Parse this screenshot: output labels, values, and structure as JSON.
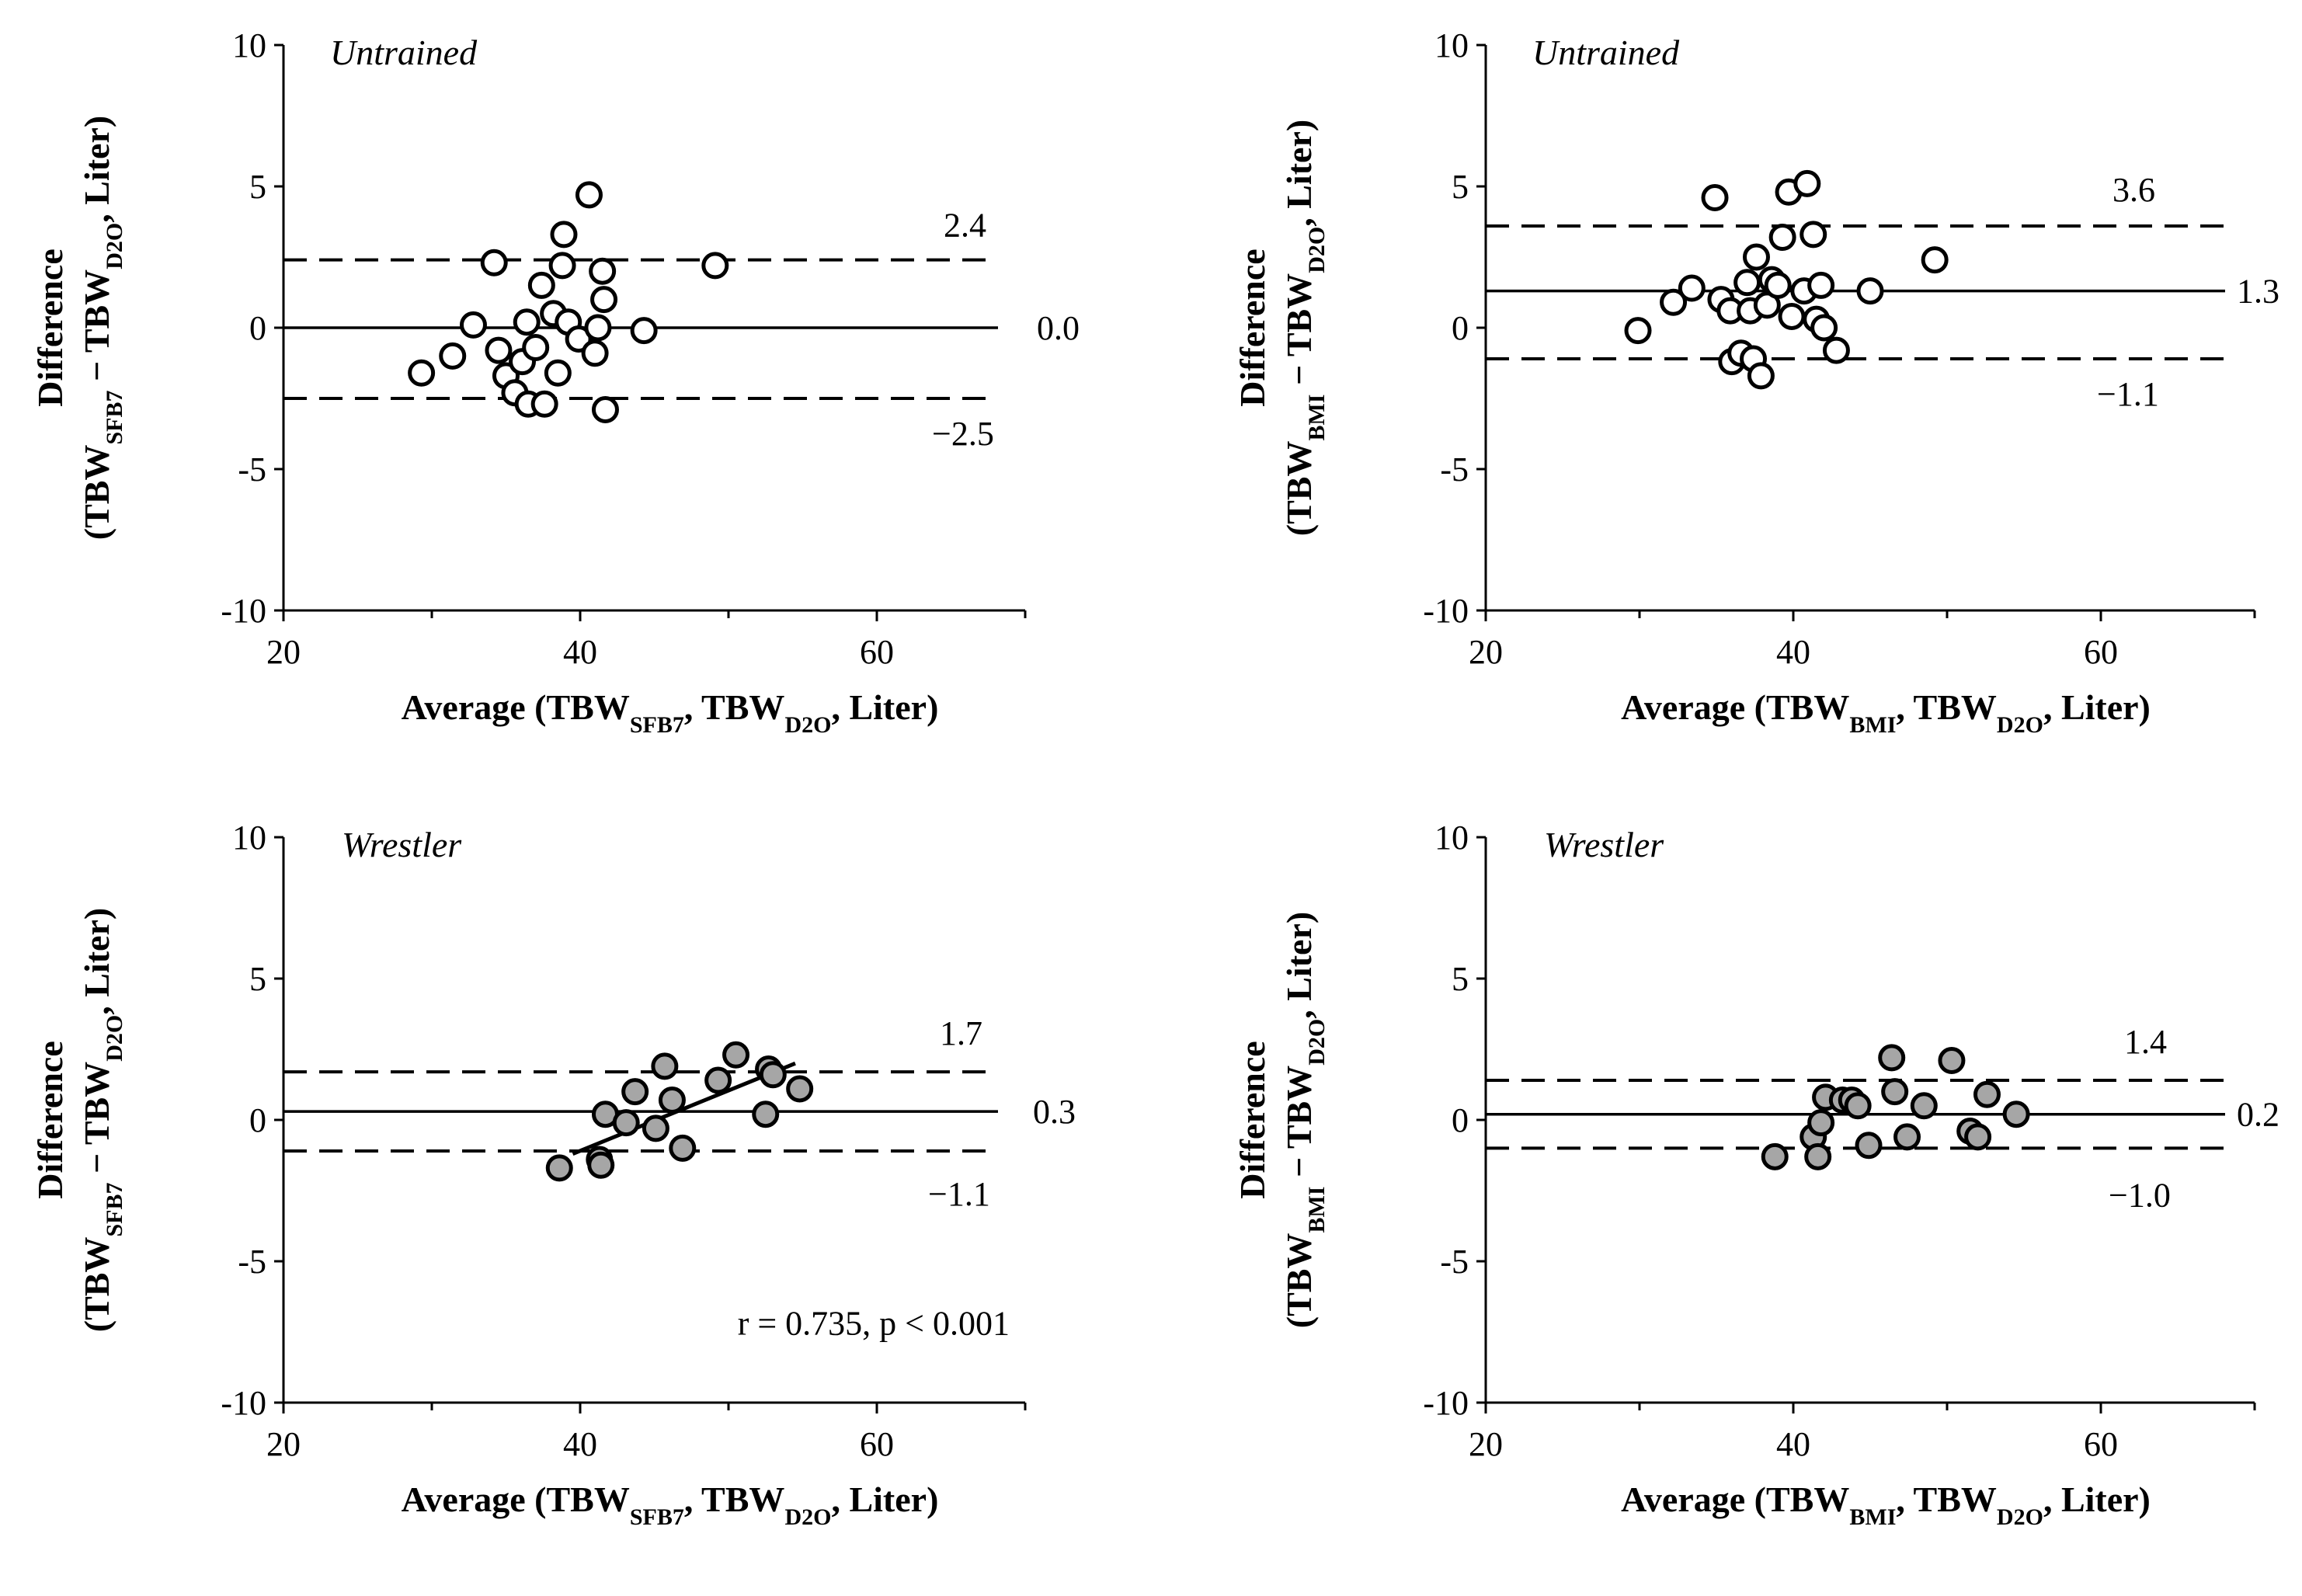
{
  "chart_data": [
    {
      "type": "scatter",
      "panel_label": "Untrained",
      "marker_fill": "#ffffff",
      "xlim": [
        20,
        70
      ],
      "ylim": [
        -10,
        10
      ],
      "xticks": [
        "20",
        "40",
        "60"
      ],
      "yticks": [
        "10",
        "5",
        "0",
        "-5",
        "-10"
      ],
      "xlabel": {
        "prefix": "Average (TBW",
        "sub1": "SFB7",
        "mid": ", TBW",
        "sub2": "D",
        "mid2": "2",
        "sub3": "O",
        "suffix": ", Liter)"
      },
      "ylabel": {
        "line1": "Difference",
        "line2": {
          "prefix": "(TBW",
          "sub1": "SFB7",
          "mid": " − TBW",
          "sub2": "D",
          "mid2": "2",
          "sub3": "O",
          "suffix": ", Liter)"
        }
      },
      "mean": {
        "value": 0.0,
        "label": "0.0"
      },
      "upper": {
        "value": 2.4,
        "label": "2.4"
      },
      "lower": {
        "value": -2.5,
        "label": "−2.5"
      },
      "points": [
        [
          29.3,
          -1.6
        ],
        [
          31.4,
          -1.0
        ],
        [
          32.8,
          0.1
        ],
        [
          34.2,
          2.3
        ],
        [
          34.5,
          -0.8
        ],
        [
          35.0,
          -1.7
        ],
        [
          35.6,
          -2.3
        ],
        [
          36.1,
          -1.2
        ],
        [
          36.4,
          0.2
        ],
        [
          36.5,
          -2.7
        ],
        [
          37.0,
          -0.7
        ],
        [
          37.4,
          1.5
        ],
        [
          37.6,
          -2.7
        ],
        [
          38.2,
          0.5
        ],
        [
          38.5,
          -1.6
        ],
        [
          38.8,
          2.2
        ],
        [
          38.9,
          3.3
        ],
        [
          39.2,
          0.2
        ],
        [
          39.9,
          -0.4
        ],
        [
          40.6,
          4.7
        ],
        [
          41.0,
          -0.9
        ],
        [
          41.2,
          0.0
        ],
        [
          41.5,
          2.0
        ],
        [
          41.6,
          1.0
        ],
        [
          41.7,
          -2.9
        ],
        [
          44.3,
          -0.1
        ],
        [
          49.1,
          2.2
        ]
      ]
    },
    {
      "type": "scatter",
      "panel_label": "Untrained",
      "marker_fill": "#ffffff",
      "xlim": [
        20,
        70
      ],
      "ylim": [
        -10,
        10
      ],
      "xticks": [
        "20",
        "40",
        "60"
      ],
      "yticks": [
        "10",
        "5",
        "0",
        "-5",
        "-10"
      ],
      "xlabel": {
        "prefix": "Average (TBW",
        "sub1": "BMI",
        "mid": ", TBW",
        "sub2": "D",
        "mid2": "2",
        "sub3": "O",
        "suffix": ", Liter)"
      },
      "ylabel": {
        "line1": "Difference",
        "line2": {
          "prefix": "(TBW",
          "sub1": "BMI",
          "mid": " − TBW",
          "sub2": "D",
          "mid2": "2",
          "sub3": "O",
          "suffix": ", Liter)"
        }
      },
      "mean": {
        "value": 1.3,
        "label": "1.3"
      },
      "upper": {
        "value": 3.6,
        "label": "3.6"
      },
      "lower": {
        "value": -1.1,
        "label": "−1.1"
      },
      "points": [
        [
          29.9,
          -0.1
        ],
        [
          32.2,
          0.9
        ],
        [
          33.4,
          1.4
        ],
        [
          34.9,
          4.6
        ],
        [
          35.3,
          1.0
        ],
        [
          35.9,
          0.6
        ],
        [
          36.0,
          -1.2
        ],
        [
          36.6,
          -0.9
        ],
        [
          37.0,
          1.6
        ],
        [
          37.2,
          0.6
        ],
        [
          37.4,
          -1.1
        ],
        [
          37.6,
          2.5
        ],
        [
          37.9,
          -1.7
        ],
        [
          38.3,
          0.8
        ],
        [
          38.6,
          1.7
        ],
        [
          39.0,
          1.5
        ],
        [
          39.3,
          3.2
        ],
        [
          39.7,
          4.8
        ],
        [
          39.9,
          0.4
        ],
        [
          40.7,
          1.3
        ],
        [
          40.9,
          5.1
        ],
        [
          41.3,
          3.3
        ],
        [
          41.5,
          0.3
        ],
        [
          41.8,
          1.5
        ],
        [
          42.0,
          0.0
        ],
        [
          42.8,
          -0.8
        ],
        [
          45.0,
          1.3
        ],
        [
          49.2,
          2.4
        ]
      ]
    },
    {
      "type": "scatter",
      "panel_label": "Wrestler",
      "marker_fill": "#a6a6a6",
      "xlim": [
        20,
        70
      ],
      "ylim": [
        -10,
        10
      ],
      "xticks": [
        "20",
        "40",
        "60"
      ],
      "yticks": [
        "10",
        "5",
        "0",
        "-5",
        "-10"
      ],
      "xlabel": {
        "prefix": "Average (TBW",
        "sub1": "SFB7",
        "mid": ", TBW",
        "sub2": "D",
        "mid2": "2",
        "sub3": "O",
        "suffix": ", Liter)"
      },
      "ylabel": {
        "line1": "Difference",
        "line2": {
          "prefix": "(TBW",
          "sub1": "SFB7",
          "mid": " − TBW",
          "sub2": "D",
          "mid2": "2",
          "sub3": "O",
          "suffix": ", Liter)"
        }
      },
      "mean": {
        "value": 0.3,
        "label": "0.3"
      },
      "upper": {
        "value": 1.7,
        "label": "1.7"
      },
      "lower": {
        "value": -1.1,
        "label": "−1.1"
      },
      "regression": {
        "x": [
          39.5,
          54.5
        ],
        "y": [
          -1.2,
          2.0
        ]
      },
      "annotation": "r = 0.735, p < 0.001",
      "points": [
        [
          38.6,
          -1.7
        ],
        [
          41.3,
          -1.4
        ],
        [
          41.4,
          -1.6
        ],
        [
          41.7,
          0.2
        ],
        [
          43.1,
          -0.1
        ],
        [
          43.7,
          1.0
        ],
        [
          45.1,
          -0.3
        ],
        [
          45.7,
          1.9
        ],
        [
          46.2,
          0.7
        ],
        [
          46.9,
          -1.0
        ],
        [
          49.3,
          1.4
        ],
        [
          50.5,
          2.3
        ],
        [
          52.5,
          0.2
        ],
        [
          52.7,
          1.8
        ],
        [
          53.0,
          1.6
        ],
        [
          54.8,
          1.1
        ]
      ]
    },
    {
      "type": "scatter",
      "panel_label": "Wrestler",
      "marker_fill": "#a6a6a6",
      "xlim": [
        20,
        70
      ],
      "ylim": [
        -10,
        10
      ],
      "xticks": [
        "20",
        "40",
        "60"
      ],
      "yticks": [
        "10",
        "5",
        "0",
        "-5",
        "-10"
      ],
      "xlabel": {
        "prefix": "Average (TBW",
        "sub1": "BMI",
        "mid": ", TBW",
        "sub2": "D",
        "mid2": "2",
        "sub3": "O",
        "suffix": ", Liter)"
      },
      "ylabel": {
        "line1": "Difference",
        "line2": {
          "prefix": "(TBW",
          "sub1": "BMI",
          "mid": " − TBW",
          "sub2": "D",
          "mid2": "2",
          "sub3": "O",
          "suffix": ", Liter)"
        }
      },
      "mean": {
        "value": 0.2,
        "label": "0.2"
      },
      "upper": {
        "value": 1.4,
        "label": "1.4"
      },
      "lower": {
        "value": -1.0,
        "label": "−1.0"
      },
      "points": [
        [
          38.8,
          -1.3
        ],
        [
          41.3,
          -0.6
        ],
        [
          41.6,
          -1.3
        ],
        [
          41.8,
          -0.1
        ],
        [
          42.1,
          0.8
        ],
        [
          43.2,
          0.7
        ],
        [
          43.8,
          0.7
        ],
        [
          44.2,
          0.5
        ],
        [
          44.9,
          -0.9
        ],
        [
          46.4,
          2.2
        ],
        [
          46.6,
          1.0
        ],
        [
          47.4,
          -0.6
        ],
        [
          48.5,
          0.5
        ],
        [
          50.3,
          2.1
        ],
        [
          51.5,
          -0.4
        ],
        [
          52.0,
          -0.6
        ],
        [
          52.6,
          0.9
        ],
        [
          54.5,
          0.2
        ]
      ]
    }
  ]
}
